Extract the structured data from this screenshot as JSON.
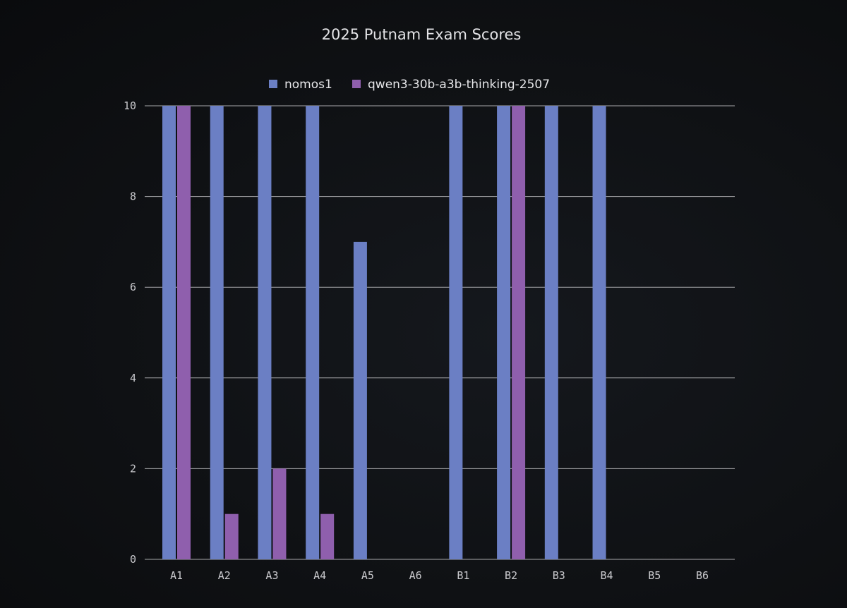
{
  "chart_data": {
    "type": "bar",
    "title": "2025 Putnam Exam Scores",
    "xlabel": "",
    "ylabel": "",
    "categories": [
      "A1",
      "A2",
      "A3",
      "A4",
      "A5",
      "A6",
      "B1",
      "B2",
      "B3",
      "B4",
      "B5",
      "B6"
    ],
    "series": [
      {
        "name": "nomos1",
        "color": "#6b7fc4",
        "values": [
          10,
          10,
          10,
          10,
          7,
          0,
          10,
          10,
          10,
          10,
          0,
          0
        ]
      },
      {
        "name": "qwen3-30b-a3b-thinking-2507",
        "color": "#8f5fad",
        "values": [
          10,
          1,
          2,
          1,
          0,
          0,
          0,
          10,
          0,
          0,
          0,
          0
        ]
      }
    ],
    "ylim": [
      0,
      10
    ],
    "yticks": [
      0,
      2,
      4,
      6,
      8,
      10
    ],
    "grid": true,
    "legend_position": "top-center"
  }
}
